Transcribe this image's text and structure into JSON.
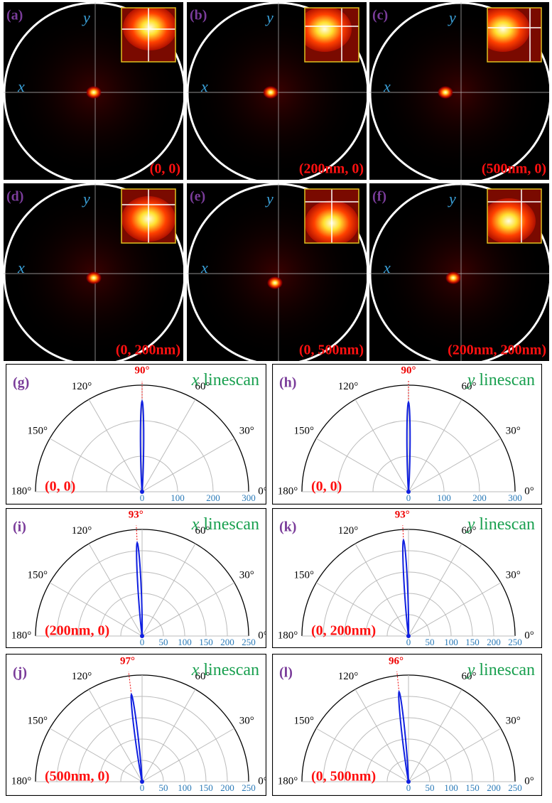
{
  "image_panels": [
    {
      "label": "(a)",
      "x_axis": "x",
      "y_axis": "y",
      "position": "(0, 0)"
    },
    {
      "label": "(b)",
      "x_axis": "x",
      "y_axis": "y",
      "position": "(200nm, 0)"
    },
    {
      "label": "(c)",
      "x_axis": "x",
      "y_axis": "y",
      "position": "(500nm, 0)"
    },
    {
      "label": "(d)",
      "x_axis": "x",
      "y_axis": "y",
      "position": "(0, 200nm)"
    },
    {
      "label": "(e)",
      "x_axis": "x",
      "y_axis": "y",
      "position": "(0, 500nm)"
    },
    {
      "label": "(f)",
      "x_axis": "x",
      "y_axis": "y",
      "position": "(200nm, 200nm)"
    }
  ],
  "polar_panels": [
    {
      "label": "(g)",
      "title_var": "x",
      "title_text": "linescan",
      "position": "(0, 0)",
      "peak_angle": 90,
      "peak_label": "90°",
      "peak_radius": 255,
      "rlim": [
        0,
        300
      ],
      "rticks": [
        0,
        100,
        200,
        300
      ],
      "angle_ticks": [
        {
          "value": 0,
          "label": "0°"
        },
        {
          "value": 30,
          "label": "30°"
        },
        {
          "value": 60,
          "label": "60°"
        },
        {
          "value": 120,
          "label": "120°"
        },
        {
          "value": 150,
          "label": "150°"
        },
        {
          "value": 180,
          "label": "180°"
        }
      ]
    },
    {
      "label": "(h)",
      "title_var": "y",
      "title_text": "linescan",
      "position": "(0, 0)",
      "peak_angle": 90,
      "peak_label": "90°",
      "peak_radius": 252,
      "rlim": [
        0,
        300
      ],
      "rticks": [
        0,
        100,
        200,
        300
      ],
      "angle_ticks": [
        {
          "value": 0,
          "label": "0°"
        },
        {
          "value": 30,
          "label": "30°"
        },
        {
          "value": 60,
          "label": "60°"
        },
        {
          "value": 120,
          "label": "120°"
        },
        {
          "value": 150,
          "label": "150°"
        },
        {
          "value": 180,
          "label": "180°"
        }
      ]
    },
    {
      "label": "(i)",
      "title_var": "x",
      "title_text": "linescan",
      "position": "(200nm, 0)",
      "peak_angle": 93,
      "peak_label": "93°",
      "peak_radius": 219,
      "rlim": [
        0,
        250
      ],
      "rticks": [
        0,
        50,
        100,
        150,
        200,
        250
      ],
      "angle_ticks": [
        {
          "value": 0,
          "label": "0°"
        },
        {
          "value": 30,
          "label": "30°"
        },
        {
          "value": 60,
          "label": "60°"
        },
        {
          "value": 120,
          "label": "120°"
        },
        {
          "value": 150,
          "label": "150°"
        },
        {
          "value": 180,
          "label": "180°"
        }
      ]
    },
    {
      "label": "(k)",
      "title_var": "y",
      "title_text": "linescan",
      "position": "(0, 200nm)",
      "peak_angle": 93,
      "peak_label": "93°",
      "peak_radius": 225,
      "rlim": [
        0,
        250
      ],
      "rticks": [
        0,
        50,
        100,
        150,
        200,
        250
      ],
      "angle_ticks": [
        {
          "value": 0,
          "label": "0°"
        },
        {
          "value": 30,
          "label": "30°"
        },
        {
          "value": 60,
          "label": "60°"
        },
        {
          "value": 120,
          "label": "120°"
        },
        {
          "value": 150,
          "label": "150°"
        },
        {
          "value": 180,
          "label": "180°"
        }
      ]
    },
    {
      "label": "(j)",
      "title_var": "x",
      "title_text": "linescan",
      "position": "(500nm, 0)",
      "peak_angle": 97,
      "peak_label": "97°",
      "peak_radius": 206,
      "rlim": [
        0,
        250
      ],
      "rticks": [
        0,
        50,
        100,
        150,
        200,
        250
      ],
      "angle_ticks": [
        {
          "value": 0,
          "label": "0°"
        },
        {
          "value": 30,
          "label": "30°"
        },
        {
          "value": 60,
          "label": "60°"
        },
        {
          "value": 120,
          "label": "120°"
        },
        {
          "value": 150,
          "label": "150°"
        },
        {
          "value": 180,
          "label": "180°"
        }
      ]
    },
    {
      "label": "(l)",
      "title_var": "y",
      "title_text": "linescan",
      "position": "(0, 500nm)",
      "peak_angle": 96,
      "peak_label": "96°",
      "peak_radius": 212,
      "rlim": [
        0,
        250
      ],
      "rticks": [
        0,
        50,
        100,
        150,
        200,
        250
      ],
      "angle_ticks": [
        {
          "value": 0,
          "label": "0°"
        },
        {
          "value": 30,
          "label": "30°"
        },
        {
          "value": 60,
          "label": "60°"
        },
        {
          "value": 120,
          "label": "120°"
        },
        {
          "value": 150,
          "label": "150°"
        },
        {
          "value": 180,
          "label": "180°"
        }
      ]
    }
  ]
}
